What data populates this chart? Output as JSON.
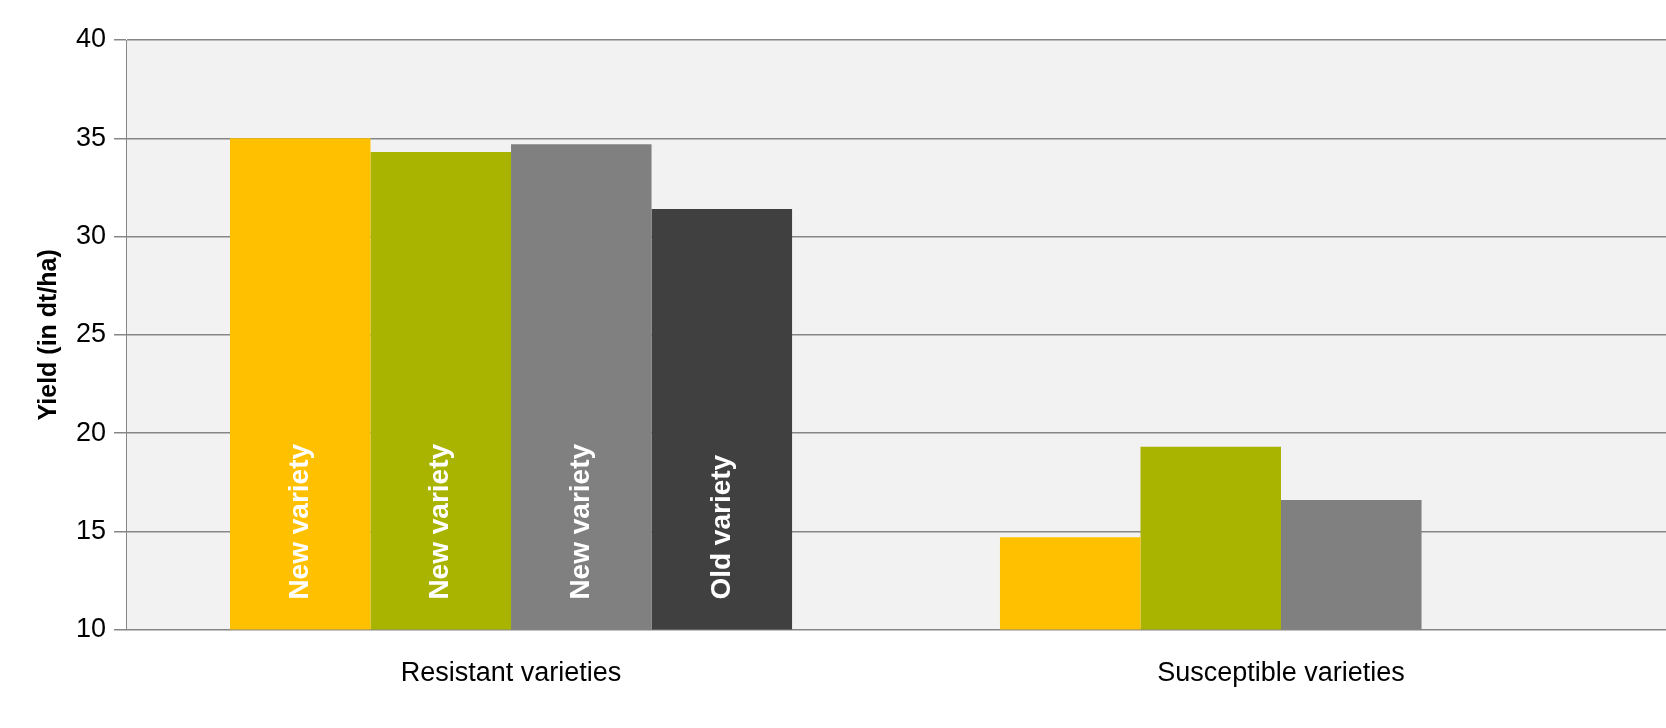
{
  "chart_data": {
    "type": "bar",
    "ylabel": "Yield (in dt/ha)",
    "categories": [
      "Resistant varieties",
      "Susceptible varieties"
    ],
    "series": [
      {
        "name": "New variety",
        "color": "#ffc000",
        "values": [
          35,
          14.7
        ]
      },
      {
        "name": "New variety",
        "color": "#a9b400",
        "values": [
          34.3,
          19.3
        ]
      },
      {
        "name": "New variety",
        "color": "#808080",
        "values": [
          34.7,
          16.6
        ]
      },
      {
        "name": "Old variety",
        "color": "#404040",
        "values": [
          31.4,
          null
        ]
      }
    ],
    "ylim": [
      10,
      40
    ],
    "yticks": [
      10,
      15,
      20,
      25,
      30,
      35,
      40
    ],
    "grid": "y",
    "legend": false
  }
}
